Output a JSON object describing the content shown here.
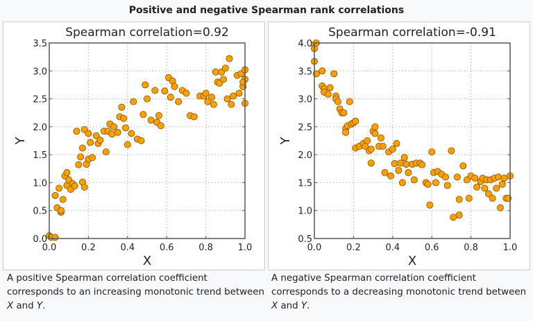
{
  "page": {
    "title": "Positive and negative Spearman rank correlations",
    "captions": [
      {
        "before": "A positive Spearman correlation coefficient corresponds to an increasing monotonic trend between ",
        "x": "X",
        "mid": " and ",
        "y": "Y",
        "after": "."
      },
      {
        "before": "A negative Spearman correlation coefficient corresponds to a decreasing monotonic trend between ",
        "x": "X",
        "mid": " and ",
        "y": "Y",
        "after": "."
      }
    ]
  },
  "colors": {
    "marker_fill": "#ff9f00",
    "marker_edge": "#7a5200",
    "axis": "#555555",
    "grid": "#b0b0b0"
  },
  "chart_data": [
    {
      "type": "scatter",
      "title": "Spearman correlation=0.92",
      "xlabel": "X",
      "ylabel": "Y",
      "xlim": [
        0.0,
        1.0
      ],
      "ylim": [
        0.0,
        3.5
      ],
      "xticks": [
        "0.0",
        "0.2",
        "0.4",
        "0.6",
        "0.8",
        "1.0"
      ],
      "yticks": [
        "0.0",
        "0.5",
        "1.0",
        "1.5",
        "2.0",
        "2.5",
        "3.0",
        "3.5"
      ],
      "grid": true,
      "points": [
        [
          0.0,
          0.05
        ],
        [
          0.01,
          0.02
        ],
        [
          0.03,
          0.02
        ],
        [
          0.03,
          0.77
        ],
        [
          0.04,
          0.55
        ],
        [
          0.05,
          0.9
        ],
        [
          0.06,
          0.47
        ],
        [
          0.06,
          0.5
        ],
        [
          0.07,
          0.7
        ],
        [
          0.08,
          1.12
        ],
        [
          0.09,
          1.18
        ],
        [
          0.09,
          0.95
        ],
        [
          0.1,
          1.05
        ],
        [
          0.11,
          0.88
        ],
        [
          0.12,
          0.98
        ],
        [
          0.13,
          0.94
        ],
        [
          0.14,
          1.92
        ],
        [
          0.15,
          1.32
        ],
        [
          0.16,
          1.46
        ],
        [
          0.17,
          1.62
        ],
        [
          0.17,
          1.01
        ],
        [
          0.18,
          0.92
        ],
        [
          0.18,
          1.95
        ],
        [
          0.19,
          1.33
        ],
        [
          0.2,
          1.88
        ],
        [
          0.2,
          1.42
        ],
        [
          0.21,
          1.72
        ],
        [
          0.22,
          1.45
        ],
        [
          0.24,
          1.84
        ],
        [
          0.25,
          1.7
        ],
        [
          0.26,
          1.76
        ],
        [
          0.28,
          1.92
        ],
        [
          0.29,
          1.55
        ],
        [
          0.3,
          1.92
        ],
        [
          0.31,
          2.05
        ],
        [
          0.32,
          1.87
        ],
        [
          0.33,
          2.0
        ],
        [
          0.35,
          1.9
        ],
        [
          0.36,
          2.18
        ],
        [
          0.37,
          2.35
        ],
        [
          0.38,
          2.15
        ],
        [
          0.39,
          1.98
        ],
        [
          0.4,
          1.68
        ],
        [
          0.42,
          1.88
        ],
        [
          0.43,
          2.45
        ],
        [
          0.45,
          1.78
        ],
        [
          0.47,
          1.75
        ],
        [
          0.48,
          2.22
        ],
        [
          0.49,
          2.75
        ],
        [
          0.5,
          2.5
        ],
        [
          0.52,
          2.12
        ],
        [
          0.54,
          2.65
        ],
        [
          0.55,
          2.08
        ],
        [
          0.56,
          2.2
        ],
        [
          0.57,
          2.02
        ],
        [
          0.59,
          2.64
        ],
        [
          0.61,
          2.88
        ],
        [
          0.62,
          2.53
        ],
        [
          0.63,
          2.82
        ],
        [
          0.64,
          2.72
        ],
        [
          0.66,
          2.45
        ],
        [
          0.68,
          2.65
        ],
        [
          0.7,
          2.6
        ],
        [
          0.72,
          2.2
        ],
        [
          0.74,
          2.18
        ],
        [
          0.77,
          2.55
        ],
        [
          0.79,
          2.55
        ],
        [
          0.8,
          2.6
        ],
        [
          0.81,
          2.45
        ],
        [
          0.83,
          2.53
        ],
        [
          0.84,
          2.4
        ],
        [
          0.85,
          2.98
        ],
        [
          0.86,
          2.8
        ],
        [
          0.87,
          2.78
        ],
        [
          0.88,
          2.98
        ],
        [
          0.89,
          2.85
        ],
        [
          0.9,
          3.05
        ],
        [
          0.91,
          2.5
        ],
        [
          0.92,
          3.22
        ],
        [
          0.93,
          2.4
        ],
        [
          0.94,
          2.55
        ],
        [
          0.96,
          2.92
        ],
        [
          0.97,
          2.6
        ],
        [
          0.98,
          2.95
        ],
        [
          0.99,
          2.72
        ],
        [
          1.0,
          3.02
        ],
        [
          1.0,
          2.85
        ],
        [
          1.0,
          2.42
        ],
        [
          0.99,
          2.8
        ]
      ]
    },
    {
      "type": "scatter",
      "title": "Spearman correlation=-0.91",
      "xlabel": "X",
      "ylabel": "Y",
      "xlim": [
        0.0,
        1.0
      ],
      "ylim": [
        0.5,
        4.0
      ],
      "xticks": [
        "0.0",
        "0.2",
        "0.4",
        "0.6",
        "0.8",
        "1.0"
      ],
      "yticks": [
        "0.5",
        "1.0",
        "1.5",
        "2.0",
        "2.5",
        "3.0",
        "3.5",
        "4.0"
      ],
      "grid": true,
      "points": [
        [
          0.0,
          3.97
        ],
        [
          0.01,
          4.0
        ],
        [
          0.0,
          3.9
        ],
        [
          0.0,
          3.67
        ],
        [
          0.01,
          3.45
        ],
        [
          0.04,
          3.5
        ],
        [
          0.04,
          3.23
        ],
        [
          0.05,
          3.18
        ],
        [
          0.05,
          3.12
        ],
        [
          0.07,
          3.08
        ],
        [
          0.08,
          3.2
        ],
        [
          0.1,
          3.45
        ],
        [
          0.11,
          3.05
        ],
        [
          0.11,
          3.0
        ],
        [
          0.12,
          2.95
        ],
        [
          0.13,
          2.82
        ],
        [
          0.14,
          2.75
        ],
        [
          0.15,
          2.75
        ],
        [
          0.16,
          2.47
        ],
        [
          0.16,
          2.4
        ],
        [
          0.17,
          2.52
        ],
        [
          0.18,
          2.95
        ],
        [
          0.19,
          2.55
        ],
        [
          0.2,
          2.57
        ],
        [
          0.21,
          2.6
        ],
        [
          0.21,
          2.12
        ],
        [
          0.23,
          2.15
        ],
        [
          0.25,
          2.2
        ],
        [
          0.26,
          2.15
        ],
        [
          0.27,
          2.25
        ],
        [
          0.28,
          2.07
        ],
        [
          0.29,
          2.1
        ],
        [
          0.29,
          1.85
        ],
        [
          0.3,
          2.42
        ],
        [
          0.31,
          2.38
        ],
        [
          0.31,
          2.5
        ],
        [
          0.33,
          2.15
        ],
        [
          0.34,
          2.3
        ],
        [
          0.35,
          2.15
        ],
        [
          0.36,
          1.68
        ],
        [
          0.38,
          2.05
        ],
        [
          0.39,
          1.62
        ],
        [
          0.4,
          2.1
        ],
        [
          0.41,
          1.84
        ],
        [
          0.42,
          2.2
        ],
        [
          0.43,
          1.72
        ],
        [
          0.44,
          1.85
        ],
        [
          0.45,
          1.5
        ],
        [
          0.46,
          1.95
        ],
        [
          0.47,
          1.83
        ],
        [
          0.48,
          1.68
        ],
        [
          0.5,
          1.83
        ],
        [
          0.51,
          1.55
        ],
        [
          0.52,
          1.85
        ],
        [
          0.54,
          1.85
        ],
        [
          0.55,
          1.82
        ],
        [
          0.57,
          1.5
        ],
        [
          0.58,
          1.47
        ],
        [
          0.59,
          1.1
        ],
        [
          0.6,
          2.05
        ],
        [
          0.61,
          1.68
        ],
        [
          0.62,
          1.5
        ],
        [
          0.63,
          1.7
        ],
        [
          0.65,
          1.65
        ],
        [
          0.67,
          1.6
        ],
        [
          0.68,
          1.45
        ],
        [
          0.7,
          2.07
        ],
        [
          0.71,
          0.88
        ],
        [
          0.73,
          1.6
        ],
        [
          0.74,
          1.2
        ],
        [
          0.74,
          0.92
        ],
        [
          0.76,
          1.8
        ],
        [
          0.78,
          1.55
        ],
        [
          0.79,
          1.22
        ],
        [
          0.8,
          1.62
        ],
        [
          0.82,
          1.58
        ],
        [
          0.83,
          1.42
        ],
        [
          0.85,
          1.52
        ],
        [
          0.86,
          1.58
        ],
        [
          0.87,
          1.4
        ],
        [
          0.88,
          1.55
        ],
        [
          0.89,
          1.3
        ],
        [
          0.9,
          1.55
        ],
        [
          0.91,
          1.22
        ],
        [
          0.92,
          1.58
        ],
        [
          0.93,
          1.4
        ],
        [
          0.94,
          1.6
        ],
        [
          0.95,
          1.05
        ],
        [
          0.96,
          1.47
        ],
        [
          0.97,
          1.58
        ],
        [
          0.98,
          1.22
        ],
        [
          0.99,
          1.22
        ],
        [
          1.0,
          1.62
        ]
      ]
    }
  ]
}
